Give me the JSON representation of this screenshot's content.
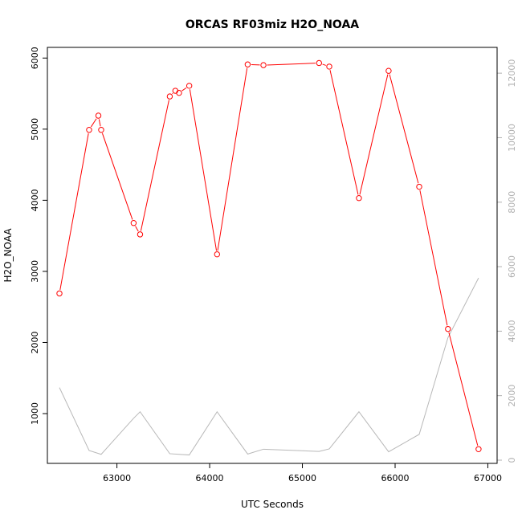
{
  "chart_data": {
    "type": "line",
    "title": "ORCAS RF03miz H2O_NOAA",
    "xlabel": "UTC Seconds",
    "ylabel": "H2O_NOAA",
    "xlim": [
      62250,
      67100
    ],
    "ylim": [
      300,
      6150
    ],
    "y2lim": [
      -100,
      12800
    ],
    "x_ticks": [
      63000,
      64000,
      65000,
      66000,
      67000
    ],
    "y_ticks": [
      1000,
      2000,
      3000,
      4000,
      5000,
      6000
    ],
    "y2_ticks": [
      0,
      2000,
      4000,
      6000,
      8000,
      10000,
      12000
    ],
    "grid": false,
    "series": [
      {
        "color": "#ff0000",
        "marker": "open-circle",
        "x": [
          62380,
          62700,
          62800,
          62830,
          63180,
          63250,
          63570,
          63630,
          63670,
          63780,
          64080,
          64410,
          64580,
          65180,
          65290,
          65610,
          65930,
          66260,
          66570,
          66900
        ],
        "y": [
          2690,
          4990,
          5190,
          4990,
          3680,
          3520,
          5460,
          5540,
          5510,
          5610,
          3240,
          5910,
          5900,
          5930,
          5880,
          4030,
          5820,
          4190,
          2190,
          500
        ]
      },
      {
        "color": "#b8b8b8",
        "axis": "right",
        "x": [
          62380,
          62700,
          62830,
          63180,
          63250,
          63570,
          63780,
          64080,
          64410,
          64580,
          65180,
          65290,
          65610,
          65930,
          66260,
          66570,
          66900
        ],
        "y": [
          2250,
          300,
          180,
          1300,
          1500,
          200,
          160,
          1500,
          190,
          340,
          270,
          350,
          1500,
          260,
          800,
          3800,
          5650
        ]
      }
    ]
  }
}
